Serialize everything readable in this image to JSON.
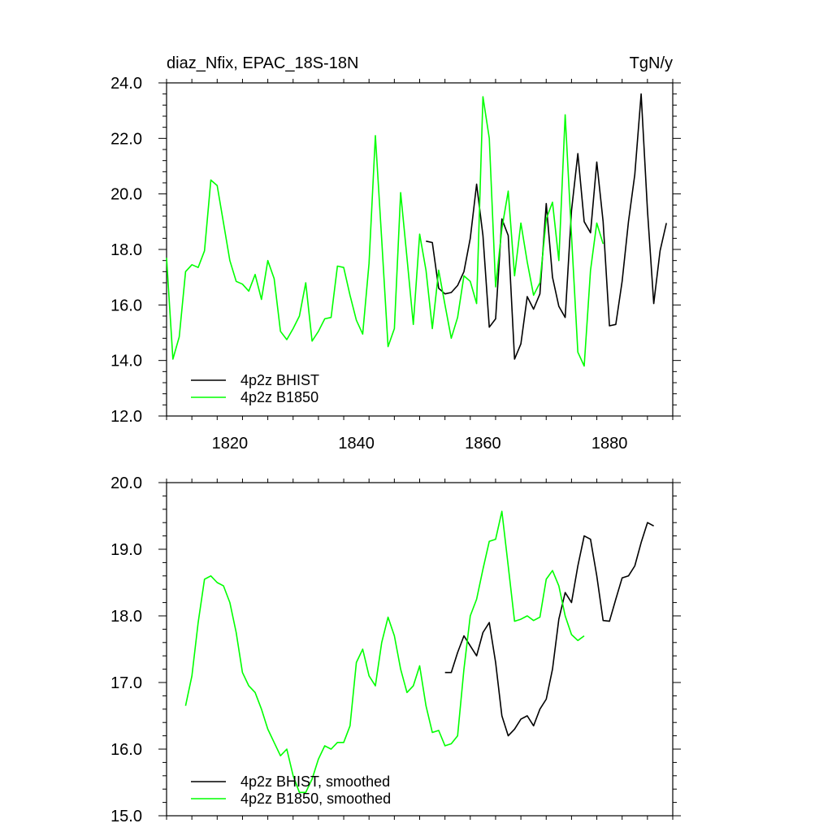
{
  "header": {
    "left_title": "diaz_Nfix, EPAC_18S-18N",
    "right_title": "TgN/y"
  },
  "colors": {
    "bhist": "#000000",
    "b1850": "#00ff00"
  },
  "chart_data": [
    {
      "type": "line",
      "xlim": [
        1810,
        1890
      ],
      "ylim": [
        12,
        24
      ],
      "xticks": [
        1820,
        1840,
        1860,
        1880
      ],
      "xtick_labels": [
        "1820",
        "1840",
        "1860",
        "1880"
      ],
      "yticks": [
        12,
        14,
        16,
        18,
        20,
        22,
        24
      ],
      "ytick_labels": [
        "12.0",
        "14.0",
        "16.0",
        "18.0",
        "20.0",
        "22.0",
        "24.0"
      ],
      "legend_position": "bottom-left",
      "series": [
        {
          "name": "4p2z BHIST",
          "color": "#000000",
          "x": [
            1851,
            1852,
            1853,
            1854,
            1855,
            1856,
            1857,
            1858,
            1859,
            1860,
            1861,
            1862,
            1863,
            1864,
            1865,
            1866,
            1867,
            1868,
            1869,
            1870,
            1871,
            1872,
            1873,
            1874,
            1875,
            1876,
            1877,
            1878,
            1879,
            1880,
            1881,
            1882,
            1883,
            1884,
            1885,
            1886,
            1887,
            1888,
            1889
          ],
          "y": [
            18.3,
            18.25,
            16.6,
            16.4,
            16.45,
            16.7,
            17.2,
            18.4,
            20.35,
            18.5,
            15.2,
            15.5,
            19.1,
            18.5,
            14.05,
            14.6,
            16.3,
            15.85,
            16.4,
            19.65,
            17.0,
            15.95,
            15.55,
            19.4,
            21.45,
            19.0,
            18.6,
            21.15,
            19.0,
            15.25,
            15.3,
            16.85,
            19.0,
            20.7,
            23.6,
            19.4,
            16.05,
            17.95,
            18.95
          ]
        },
        {
          "name": "4p2z B1850",
          "color": "#00ff00",
          "x": [
            1810,
            1811,
            1812,
            1813,
            1814,
            1815,
            1816,
            1817,
            1818,
            1819,
            1820,
            1821,
            1822,
            1823,
            1824,
            1825,
            1826,
            1827,
            1828,
            1829,
            1830,
            1831,
            1832,
            1833,
            1834,
            1835,
            1836,
            1837,
            1838,
            1839,
            1840,
            1841,
            1842,
            1843,
            1844,
            1845,
            1846,
            1847,
            1848,
            1849,
            1850,
            1851,
            1852,
            1853,
            1854,
            1855,
            1856,
            1857,
            1858,
            1859,
            1860,
            1861,
            1862,
            1863,
            1864,
            1865,
            1866,
            1867,
            1868,
            1869,
            1870,
            1871,
            1872,
            1873,
            1874,
            1875,
            1876,
            1877,
            1878,
            1879
          ],
          "y": [
            17.7,
            14.05,
            14.85,
            17.2,
            17.45,
            17.35,
            17.95,
            20.5,
            20.3,
            18.95,
            17.6,
            16.85,
            16.75,
            16.5,
            17.1,
            16.2,
            17.6,
            16.95,
            15.05,
            14.75,
            15.15,
            15.6,
            16.8,
            14.7,
            15.05,
            15.5,
            15.55,
            17.4,
            17.35,
            16.35,
            15.45,
            14.95,
            17.5,
            22.1,
            18.35,
            14.5,
            15.15,
            20.05,
            17.7,
            15.3,
            18.55,
            17.25,
            15.15,
            17.25,
            16.0,
            14.8,
            15.55,
            17.05,
            16.85,
            16.05,
            23.5,
            22.0,
            16.65,
            18.75,
            20.1,
            17.05,
            18.95,
            17.55,
            16.35,
            16.8,
            19.1,
            19.7,
            17.6,
            22.85,
            18.5,
            14.3,
            13.8,
            17.25,
            18.95,
            18.2
          ]
        }
      ]
    },
    {
      "type": "line",
      "xlim": [
        1810,
        1890
      ],
      "ylim": [
        15,
        20
      ],
      "xticks": [
        1820,
        1840,
        1860,
        1880
      ],
      "xtick_labels": [
        "",
        "",
        "",
        ""
      ],
      "yticks": [
        15,
        16,
        17,
        18,
        19,
        20
      ],
      "ytick_labels": [
        "15.0",
        "16.0",
        "17.0",
        "18.0",
        "19.0",
        "20.0"
      ],
      "legend_position": "bottom-left",
      "series": [
        {
          "name": "4p2z BHIST, smoothed",
          "color": "#000000",
          "x": [
            1854,
            1855,
            1856,
            1857,
            1858,
            1859,
            1860,
            1861,
            1862,
            1863,
            1864,
            1865,
            1866,
            1867,
            1868,
            1869,
            1870,
            1871,
            1872,
            1873,
            1874,
            1875,
            1876,
            1877,
            1878,
            1879,
            1880,
            1881,
            1882,
            1883,
            1884,
            1885,
            1886,
            1887
          ],
          "y": [
            17.15,
            17.15,
            17.45,
            17.7,
            17.55,
            17.4,
            17.75,
            17.9,
            17.3,
            16.5,
            16.2,
            16.3,
            16.45,
            16.5,
            16.35,
            16.6,
            16.75,
            17.2,
            17.95,
            18.35,
            18.2,
            18.75,
            19.2,
            19.15,
            18.6,
            17.93,
            17.92,
            18.25,
            18.57,
            18.6,
            18.75,
            19.1,
            19.4,
            19.35
          ]
        },
        {
          "name": "4p2z B1850, smoothed",
          "color": "#00ff00",
          "x": [
            1813,
            1814,
            1815,
            1816,
            1817,
            1818,
            1819,
            1820,
            1821,
            1822,
            1823,
            1824,
            1825,
            1826,
            1827,
            1828,
            1829,
            1830,
            1831,
            1832,
            1833,
            1834,
            1835,
            1836,
            1837,
            1838,
            1839,
            1840,
            1841,
            1842,
            1843,
            1844,
            1845,
            1846,
            1847,
            1848,
            1849,
            1850,
            1851,
            1852,
            1853,
            1854,
            1855,
            1856,
            1857,
            1858,
            1859,
            1860,
            1861,
            1862,
            1863,
            1864,
            1865,
            1866,
            1867,
            1868,
            1869,
            1870,
            1871,
            1872,
            1873,
            1874,
            1875,
            1876
          ],
          "y": [
            16.65,
            17.1,
            17.9,
            18.55,
            18.6,
            18.5,
            18.45,
            18.2,
            17.75,
            17.15,
            16.95,
            16.85,
            16.6,
            16.3,
            16.1,
            15.9,
            16.0,
            15.6,
            15.35,
            15.35,
            15.55,
            15.85,
            16.05,
            16.0,
            16.1,
            16.1,
            16.35,
            17.3,
            17.5,
            17.1,
            16.95,
            17.6,
            17.98,
            17.7,
            17.2,
            16.85,
            16.95,
            17.25,
            16.65,
            16.25,
            16.28,
            16.05,
            16.08,
            16.2,
            17.2,
            18.0,
            18.25,
            18.7,
            19.12,
            19.15,
            19.57,
            18.75,
            17.92,
            17.95,
            18.0,
            17.93,
            17.98,
            18.55,
            18.68,
            18.45,
            18.0,
            17.72,
            17.63,
            17.7
          ]
        }
      ]
    }
  ]
}
